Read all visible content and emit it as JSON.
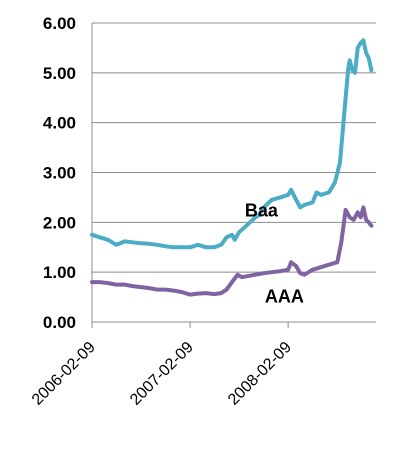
{
  "chart_data": {
    "type": "line",
    "x_ticks": [
      "2006-02-09",
      "2007-02-09",
      "2008-02-09"
    ],
    "xlim": [
      "2006-02-09",
      "2009-01-01"
    ],
    "ylim": [
      0,
      6
    ],
    "y_ticks": [
      "0.00",
      "1.00",
      "2.00",
      "3.00",
      "4.00",
      "5.00",
      "6.00"
    ],
    "grid": "horizontal",
    "series": [
      {
        "name": "Baa",
        "color": "#4bacc6",
        "points": [
          [
            "2006-02-09",
            1.75
          ],
          [
            "2006-03-10",
            1.7
          ],
          [
            "2006-04-10",
            1.65
          ],
          [
            "2006-05-10",
            1.55
          ],
          [
            "2006-05-25",
            1.58
          ],
          [
            "2006-06-10",
            1.62
          ],
          [
            "2006-07-10",
            1.6
          ],
          [
            "2006-08-10",
            1.58
          ],
          [
            "2006-09-10",
            1.57
          ],
          [
            "2006-10-10",
            1.55
          ],
          [
            "2006-11-10",
            1.52
          ],
          [
            "2006-12-10",
            1.5
          ],
          [
            "2007-01-10",
            1.5
          ],
          [
            "2007-02-09",
            1.5
          ],
          [
            "2007-03-10",
            1.55
          ],
          [
            "2007-04-10",
            1.5
          ],
          [
            "2007-05-10",
            1.5
          ],
          [
            "2007-06-05",
            1.55
          ],
          [
            "2007-06-25",
            1.7
          ],
          [
            "2007-07-15",
            1.75
          ],
          [
            "2007-07-25",
            1.65
          ],
          [
            "2007-08-10",
            1.8
          ],
          [
            "2007-09-10",
            1.95
          ],
          [
            "2007-10-10",
            2.1
          ],
          [
            "2007-10-25",
            2.15
          ],
          [
            "2007-11-10",
            2.3
          ],
          [
            "2007-12-10",
            2.45
          ],
          [
            "2008-01-10",
            2.5
          ],
          [
            "2008-02-09",
            2.55
          ],
          [
            "2008-02-20",
            2.65
          ],
          [
            "2008-03-10",
            2.45
          ],
          [
            "2008-03-25",
            2.3
          ],
          [
            "2008-04-10",
            2.35
          ],
          [
            "2008-05-10",
            2.4
          ],
          [
            "2008-05-25",
            2.6
          ],
          [
            "2008-06-10",
            2.55
          ],
          [
            "2008-07-10",
            2.6
          ],
          [
            "2008-08-01",
            2.8
          ],
          [
            "2008-08-20",
            3.2
          ],
          [
            "2008-09-05",
            4.2
          ],
          [
            "2008-09-20",
            5.1
          ],
          [
            "2008-09-25",
            5.25
          ],
          [
            "2008-10-05",
            5.05
          ],
          [
            "2008-10-15",
            5.0
          ],
          [
            "2008-10-25",
            5.5
          ],
          [
            "2008-11-05",
            5.6
          ],
          [
            "2008-11-15",
            5.65
          ],
          [
            "2008-11-25",
            5.4
          ],
          [
            "2008-12-05",
            5.3
          ],
          [
            "2008-12-15",
            5.05
          ]
        ]
      },
      {
        "name": "AAA",
        "color": "#8064a2",
        "points": [
          [
            "2006-02-09",
            0.8
          ],
          [
            "2006-03-10",
            0.8
          ],
          [
            "2006-04-10",
            0.78
          ],
          [
            "2006-05-10",
            0.75
          ],
          [
            "2006-06-10",
            0.75
          ],
          [
            "2006-07-10",
            0.72
          ],
          [
            "2006-08-10",
            0.7
          ],
          [
            "2006-09-10",
            0.68
          ],
          [
            "2006-10-10",
            0.65
          ],
          [
            "2006-11-10",
            0.65
          ],
          [
            "2006-12-10",
            0.63
          ],
          [
            "2007-01-10",
            0.6
          ],
          [
            "2007-02-09",
            0.55
          ],
          [
            "2007-03-10",
            0.57
          ],
          [
            "2007-04-10",
            0.58
          ],
          [
            "2007-05-10",
            0.56
          ],
          [
            "2007-06-05",
            0.58
          ],
          [
            "2007-06-25",
            0.65
          ],
          [
            "2007-07-15",
            0.8
          ],
          [
            "2007-08-05",
            0.95
          ],
          [
            "2007-08-20",
            0.9
          ],
          [
            "2007-09-10",
            0.92
          ],
          [
            "2007-10-10",
            0.95
          ],
          [
            "2007-11-10",
            0.98
          ],
          [
            "2007-12-10",
            1.0
          ],
          [
            "2008-01-10",
            1.02
          ],
          [
            "2008-02-09",
            1.05
          ],
          [
            "2008-02-20",
            1.2
          ],
          [
            "2008-03-10",
            1.12
          ],
          [
            "2008-03-25",
            0.98
          ],
          [
            "2008-04-10",
            0.95
          ],
          [
            "2008-05-10",
            1.05
          ],
          [
            "2008-06-10",
            1.1
          ],
          [
            "2008-07-10",
            1.15
          ],
          [
            "2008-08-10",
            1.2
          ],
          [
            "2008-08-25",
            1.6
          ],
          [
            "2008-09-10",
            2.25
          ],
          [
            "2008-09-25",
            2.1
          ],
          [
            "2008-10-10",
            2.05
          ],
          [
            "2008-10-25",
            2.2
          ],
          [
            "2008-11-05",
            2.1
          ],
          [
            "2008-11-15",
            2.3
          ],
          [
            "2008-11-25",
            2.05
          ],
          [
            "2008-12-05",
            2.0
          ],
          [
            "2008-12-15",
            1.93
          ]
        ]
      }
    ]
  }
}
